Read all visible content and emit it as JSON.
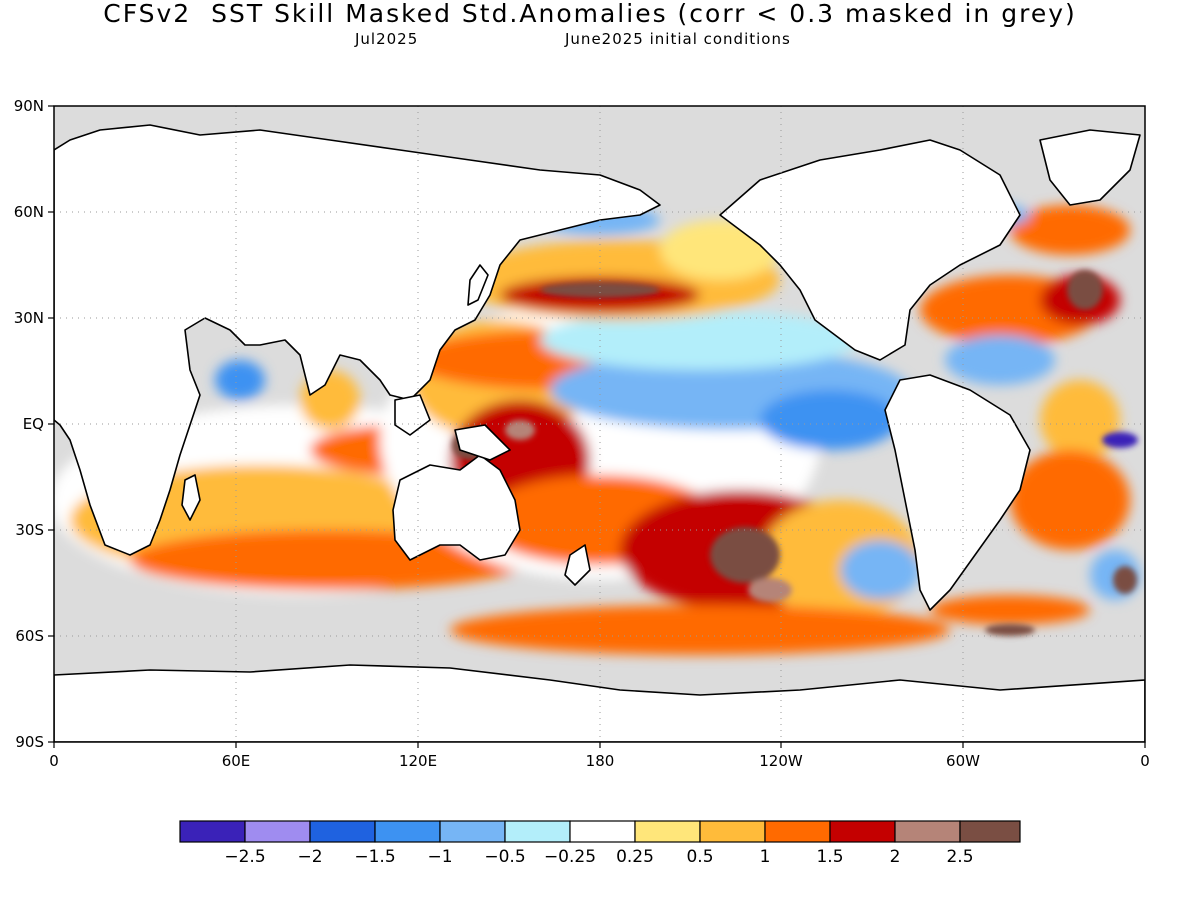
{
  "title": {
    "main": "CFSv2  SST Skill Masked Std.Anomalies (corr < 0.3 masked in grey)",
    "target_month": "Jul2025",
    "initial_conditions": "June2025 initial conditions"
  },
  "map": {
    "projection": "cylindrical equidistant",
    "lon_range": [
      0,
      360
    ],
    "lat_range": [
      -90,
      90
    ],
    "masked_color": "#dcdcdc",
    "land_color": "#ffffff",
    "coastline_color": "#000000",
    "grid": true,
    "x_tick_labels": [
      "0",
      "60E",
      "120E",
      "180",
      "120W",
      "60W",
      "0"
    ],
    "y_tick_labels": [
      "90N",
      "60N",
      "30N",
      "EQ",
      "30S",
      "60S",
      "90S"
    ]
  },
  "colorbar": {
    "colors": [
      "#3a22b8",
      "#9f8cf0",
      "#1f62e0",
      "#3d92f2",
      "#76b5f5",
      "#b3eefa",
      "#ffffff",
      "#ffe67a",
      "#ffbb3a",
      "#ff6a00",
      "#c40000",
      "#b58478",
      "#7a4e43"
    ],
    "labels": [
      "−2.5",
      "−2",
      "−1.5",
      "−1",
      "−0.5",
      "−0.25",
      "0.25",
      "0.5",
      "1",
      "1.5",
      "2",
      "2.5"
    ]
  },
  "anomaly_regions": [
    {
      "region": "North Pacific",
      "level": "warm",
      "color": "#ff6a00"
    },
    {
      "region": "Central Equatorial Pacific",
      "level": "cool",
      "color": "#76b5f5"
    },
    {
      "region": "Western Pacific",
      "level": "very warm",
      "color": "#c40000"
    },
    {
      "region": "South Pacific",
      "level": "very warm",
      "color": "#7a4e43"
    },
    {
      "region": "North Atlantic",
      "level": "warm",
      "color": "#ff6a00"
    },
    {
      "region": "Indian Ocean",
      "level": "mixed",
      "color": "#ffbb3a"
    }
  ]
}
